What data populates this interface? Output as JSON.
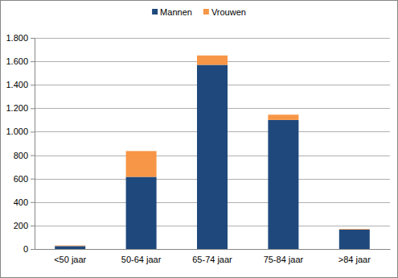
{
  "chart_data": {
    "type": "bar",
    "stacked": true,
    "grid": true,
    "legend": "top",
    "categories": [
      "<50 jaar",
      "50-64 jaar",
      "65-74 jaar",
      "75-84 jaar",
      ">84 jaar"
    ],
    "series": [
      {
        "name": "Mannen",
        "color": "#1f497d",
        "values": [
          25,
          615,
          1570,
          1100,
          165
        ]
      },
      {
        "name": "Vrouwen",
        "color": "#f79646",
        "values": [
          5,
          220,
          80,
          45,
          5
        ]
      }
    ],
    "ylim": [
      0,
      1800
    ],
    "yticks": [
      0,
      200,
      400,
      600,
      800,
      {
        "value": 1000,
        "label": "1.000"
      },
      {
        "value": 1200,
        "label": "1.200"
      },
      {
        "value": 1400,
        "label": "1.400"
      },
      {
        "value": 1600,
        "label": "1.600"
      },
      {
        "value": 1800,
        "label": "1.800"
      }
    ]
  }
}
